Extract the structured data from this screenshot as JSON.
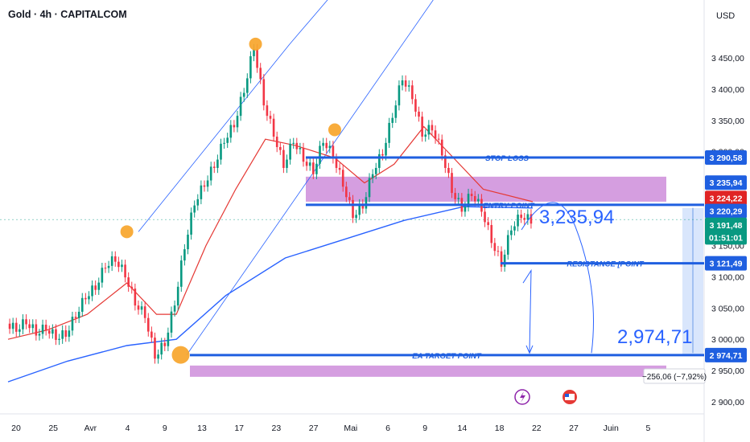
{
  "header": {
    "title": "Gold · 4h · CAPITALCOM",
    "currency": "USD"
  },
  "colors": {
    "blue": "#1f5fe0",
    "purple": "#c77ed6",
    "red": "#e02424",
    "green": "#089981",
    "candle_down": "#f23645",
    "orange": "#f7a52b",
    "ema_blue": "#2962ff",
    "ema_red": "#e53935"
  },
  "chart_data": {
    "type": "candlestick",
    "ylim": [
      2900,
      3480
    ],
    "y_ticks": [
      "3 450,00",
      "3 400,00",
      "3 350,00",
      "3 300,00",
      "3 150,00",
      "3 100,00",
      "3 050,00",
      "3 000,00",
      "2 950,00",
      "2 900,00"
    ],
    "y_tick_values": [
      3450,
      3400,
      3350,
      3300,
      3150,
      3100,
      3050,
      3000,
      2950,
      2900
    ],
    "x_ticks": [
      "20",
      "25",
      "Avr",
      "4",
      "9",
      "13",
      "17",
      "23",
      "27",
      "Mai",
      "6",
      "9",
      "14",
      "18",
      "22",
      "27",
      "Juin",
      "5"
    ],
    "price_path": [
      {
        "x": 0,
        "y": 3025
      },
      {
        "x": 1,
        "y": 3018
      },
      {
        "x": 2,
        "y": 3030
      },
      {
        "x": 3,
        "y": 3012
      },
      {
        "x": 4,
        "y": 3020
      },
      {
        "x": 5,
        "y": 3005
      },
      {
        "x": 6,
        "y": 3010
      },
      {
        "x": 7,
        "y": 3040
      },
      {
        "x": 8,
        "y": 3070
      },
      {
        "x": 9,
        "y": 3085
      },
      {
        "x": 10,
        "y": 3120
      },
      {
        "x": 11,
        "y": 3130
      },
      {
        "x": 12,
        "y": 3105
      },
      {
        "x": 13,
        "y": 3060
      },
      {
        "x": 14,
        "y": 3040
      },
      {
        "x": 15,
        "y": 2975
      },
      {
        "x": 16,
        "y": 2995
      },
      {
        "x": 17,
        "y": 3060
      },
      {
        "x": 18,
        "y": 3150
      },
      {
        "x": 19,
        "y": 3220
      },
      {
        "x": 20,
        "y": 3250
      },
      {
        "x": 21,
        "y": 3280
      },
      {
        "x": 22,
        "y": 3320
      },
      {
        "x": 23,
        "y": 3345
      },
      {
        "x": 24,
        "y": 3400
      },
      {
        "x": 25,
        "y": 3470
      },
      {
        "x": 26,
        "y": 3380
      },
      {
        "x": 27,
        "y": 3330
      },
      {
        "x": 28,
        "y": 3280
      },
      {
        "x": 29,
        "y": 3320
      },
      {
        "x": 30,
        "y": 3290
      },
      {
        "x": 31,
        "y": 3270
      },
      {
        "x": 32,
        "y": 3320
      },
      {
        "x": 33,
        "y": 3295
      },
      {
        "x": 34,
        "y": 3250
      },
      {
        "x": 35,
        "y": 3200
      },
      {
        "x": 36,
        "y": 3215
      },
      {
        "x": 37,
        "y": 3270
      },
      {
        "x": 38,
        "y": 3300
      },
      {
        "x": 39,
        "y": 3360
      },
      {
        "x": 40,
        "y": 3420
      },
      {
        "x": 41,
        "y": 3390
      },
      {
        "x": 42,
        "y": 3330
      },
      {
        "x": 43,
        "y": 3340
      },
      {
        "x": 44,
        "y": 3300
      },
      {
        "x": 45,
        "y": 3240
      },
      {
        "x": 46,
        "y": 3210
      },
      {
        "x": 47,
        "y": 3235
      },
      {
        "x": 48,
        "y": 3210
      },
      {
        "x": 49,
        "y": 3160
      },
      {
        "x": 50,
        "y": 3122
      },
      {
        "x": 51,
        "y": 3180
      },
      {
        "x": 52,
        "y": 3200
      },
      {
        "x": 53,
        "y": 3191
      }
    ],
    "ema_red": [
      {
        "x": 0,
        "y": 3000
      },
      {
        "x": 4,
        "y": 3015
      },
      {
        "x": 8,
        "y": 3040
      },
      {
        "x": 12,
        "y": 3090
      },
      {
        "x": 15,
        "y": 3040
      },
      {
        "x": 17,
        "y": 3040
      },
      {
        "x": 20,
        "y": 3150
      },
      {
        "x": 23,
        "y": 3240
      },
      {
        "x": 26,
        "y": 3320
      },
      {
        "x": 29,
        "y": 3310
      },
      {
        "x": 33,
        "y": 3290
      },
      {
        "x": 36,
        "y": 3250
      },
      {
        "x": 39,
        "y": 3280
      },
      {
        "x": 42,
        "y": 3340
      },
      {
        "x": 45,
        "y": 3290
      },
      {
        "x": 48,
        "y": 3240
      },
      {
        "x": 53,
        "y": 3220
      }
    ],
    "ema_blue": [
      {
        "x": 0,
        "y": 2932
      },
      {
        "x": 6,
        "y": 2965
      },
      {
        "x": 12,
        "y": 2990
      },
      {
        "x": 17,
        "y": 3000
      },
      {
        "x": 22,
        "y": 3070
      },
      {
        "x": 28,
        "y": 3130
      },
      {
        "x": 34,
        "y": 3160
      },
      {
        "x": 40,
        "y": 3190
      },
      {
        "x": 46,
        "y": 3212
      },
      {
        "x": 53,
        "y": 3210
      }
    ],
    "swing_points": [
      {
        "x": 15,
        "y": 2975
      },
      {
        "x": 25,
        "y": 3472
      },
      {
        "x": 12,
        "y": 3172
      },
      {
        "x": 33,
        "y": 3335
      }
    ],
    "zones": [
      {
        "y_top": 3260,
        "y_bottom": 3220
      },
      {
        "y_top": 2958,
        "y_bottom": 2940
      }
    ],
    "levels": [
      {
        "name": "stop-loss",
        "value": 3290.58
      },
      {
        "name": "entry",
        "value": 3224.22
      },
      {
        "name": "resistance",
        "value": 3121.49
      },
      {
        "name": "target",
        "value": 2974.71
      }
    ],
    "line_labels": {
      "stop_loss": "STOP LOSS",
      "entry_point": "ENTRY POINT",
      "resistance_point": "RESISTANCE [POINT",
      "ea_target_point": "EA TARGET POINT"
    },
    "big_labels": {
      "upper": "3,235,94",
      "lower": "2,974,71"
    },
    "price_badges": [
      {
        "name": "price-badge-3290",
        "label": "3 290,58",
        "value": 3290.58,
        "color": "#1f5fe0"
      },
      {
        "name": "price-badge-3235",
        "label": "3 235,94",
        "value": 3250.5,
        "color": "#1f5fe0"
      },
      {
        "name": "price-badge-3224",
        "label": "3 224,22",
        "value": 3226,
        "color": "#e02424"
      },
      {
        "name": "price-badge-3220",
        "label": "3 220,29",
        "value": 3205,
        "color": "#1f5fe0"
      },
      {
        "name": "price-badge-3191",
        "label": "3 191,48",
        "value": 3183,
        "color": "#089981"
      },
      {
        "name": "price-badge-timer",
        "label": "01:51:01",
        "value": 3163,
        "color": "#089981"
      },
      {
        "name": "price-badge-3121",
        "label": "3 121,49",
        "value": 3121.49,
        "color": "#1f5fe0"
      },
      {
        "name": "price-badge-2974",
        "label": "2 974,71",
        "value": 2974.71,
        "color": "#1f5fe0"
      }
    ],
    "measure_label": "−256,06 (−7,92%)"
  }
}
